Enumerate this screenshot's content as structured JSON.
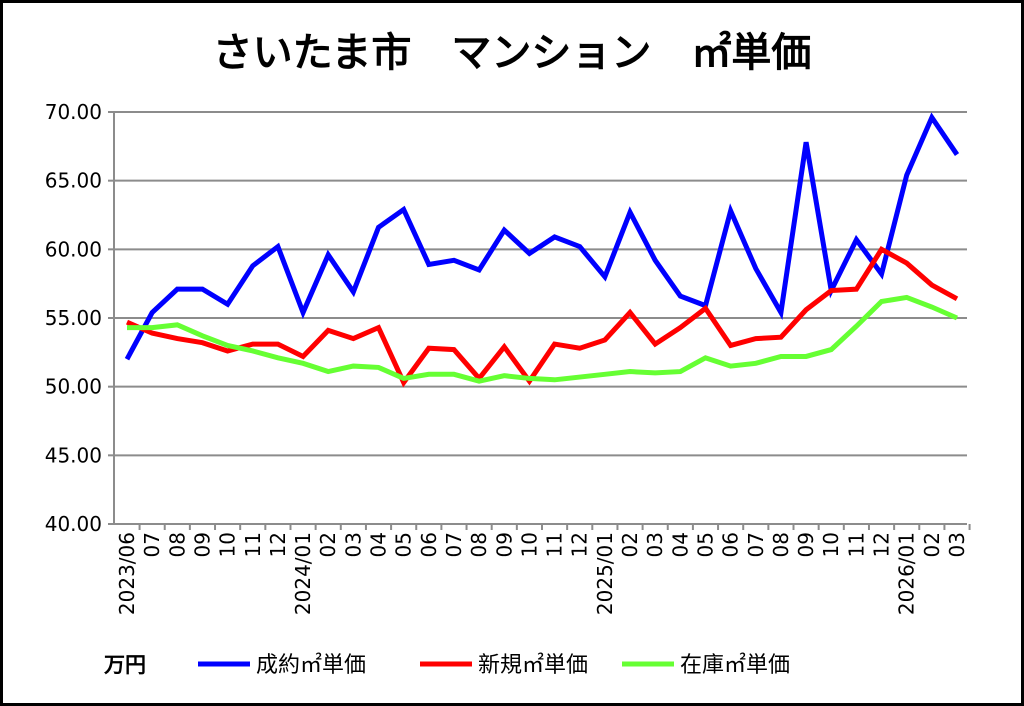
{
  "chart_data": {
    "type": "line",
    "title": "さいたま市　マンション　㎡単価",
    "ylabel": "万円",
    "ylim": [
      40,
      70
    ],
    "yticks": [
      "40.00",
      "45.00",
      "50.00",
      "55.00",
      "60.00",
      "65.00",
      "70.00"
    ],
    "ytick_values": [
      40,
      45,
      50,
      55,
      60,
      65,
      70
    ],
    "grid": true,
    "legend_position": "bottom",
    "x": [
      "2023/06",
      "07",
      "08",
      "09",
      "10",
      "11",
      "12",
      "2024/01",
      "02",
      "03",
      "04",
      "05",
      "06",
      "07",
      "08",
      "09",
      "10",
      "11",
      "12",
      "2025/01",
      "02",
      "03",
      "04",
      "05",
      "06",
      "07",
      "08",
      "09",
      "10",
      "11",
      "12",
      "2026/01",
      "02",
      "03"
    ],
    "series": [
      {
        "name": "成約㎡単価",
        "color": "#0000ff",
        "values": [
          52.0,
          55.4,
          57.1,
          57.1,
          56.0,
          58.8,
          60.2,
          55.4,
          59.6,
          56.9,
          61.6,
          62.9,
          58.9,
          59.2,
          58.5,
          61.4,
          59.7,
          60.9,
          60.2,
          58.0,
          62.7,
          59.2,
          56.6,
          55.9,
          62.8,
          58.6,
          55.4,
          67.8,
          57.0,
          60.7,
          58.2,
          65.4,
          69.6,
          66.9
        ]
      },
      {
        "name": "新規㎡単価",
        "color": "#ff0000",
        "values": [
          54.7,
          53.9,
          53.5,
          53.2,
          52.6,
          53.1,
          53.1,
          52.2,
          54.1,
          53.5,
          54.3,
          50.3,
          52.8,
          52.7,
          50.6,
          52.9,
          50.4,
          53.1,
          52.8,
          53.4,
          55.4,
          53.1,
          54.3,
          55.7,
          53.0,
          53.5,
          53.6,
          55.6,
          57.0,
          57.1,
          60.0,
          59.0,
          57.4,
          56.4
        ]
      },
      {
        "name": "在庫㎡単価",
        "color": "#66ff33",
        "values": [
          54.3,
          54.3,
          54.5,
          53.7,
          53.0,
          52.6,
          52.1,
          51.7,
          51.1,
          51.5,
          51.4,
          50.6,
          50.9,
          50.9,
          50.4,
          50.8,
          50.6,
          50.5,
          50.7,
          50.9,
          51.1,
          51.0,
          51.1,
          52.1,
          51.5,
          51.7,
          52.2,
          52.2,
          52.7,
          54.4,
          56.2,
          56.5,
          55.8,
          55.0
        ]
      }
    ]
  }
}
